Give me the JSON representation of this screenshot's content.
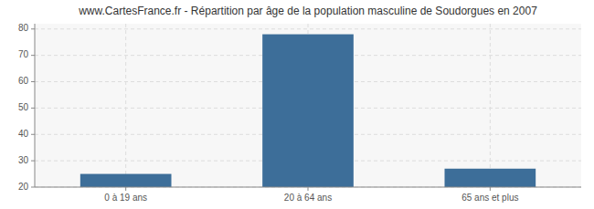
{
  "chart_data": {
    "type": "bar",
    "title": "www.CartesFrance.fr - Répartition par âge de la population masculine de Soudorgues en 2007",
    "categories": [
      "0 à 19 ans",
      "20 à 64 ans",
      "65 ans et plus"
    ],
    "values": [
      25,
      78,
      27
    ],
    "color": "#3d6e99",
    "ylim": [
      20,
      82
    ],
    "yticks": [
      20,
      30,
      40,
      50,
      60,
      70,
      80
    ],
    "grid": true
  }
}
